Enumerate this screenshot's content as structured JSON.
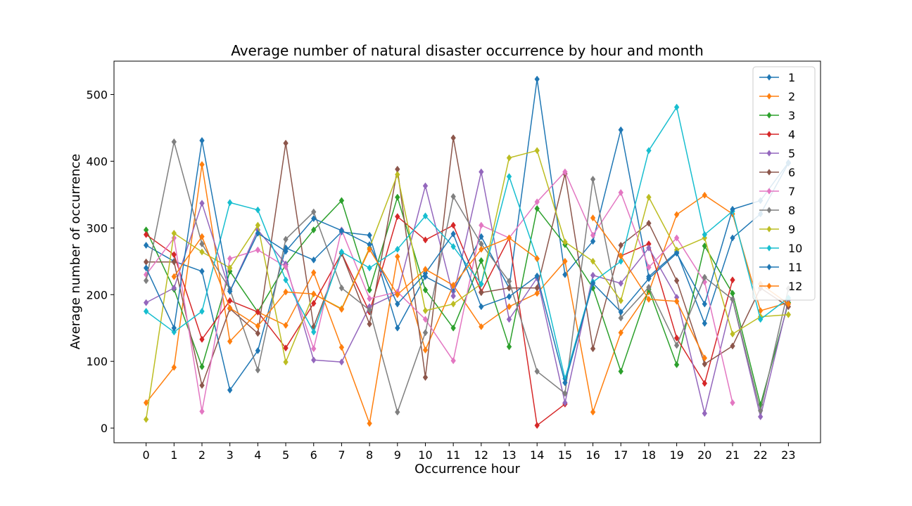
{
  "chart_data": {
    "type": "line",
    "title": "Average number of natural disaster occurrence by hour and month",
    "xlabel": "Occurrence hour",
    "ylabel": "Average number of occurrence",
    "x": [
      0,
      1,
      2,
      3,
      4,
      5,
      6,
      7,
      8,
      9,
      10,
      11,
      12,
      13,
      14,
      15,
      16,
      17,
      18,
      19,
      20,
      21,
      22,
      23
    ],
    "xlim": [
      -1.15,
      24.15
    ],
    "ylim": [
      -22,
      550
    ],
    "yticks": [
      0,
      100,
      200,
      300,
      400,
      500
    ],
    "grid": false,
    "legend": "top-right",
    "marker": "diamond",
    "series": [
      {
        "name": "1",
        "color": "#1f77b4",
        "values": [
          274,
          250,
          235,
          57,
          116,
          270,
          252,
          294,
          289,
          150,
          227,
          205,
          287,
          210,
          523,
          230,
          280,
          447,
          227,
          264,
          157,
          285,
          321,
          397
        ]
      },
      {
        "name": "2",
        "color": "#ff7f0e",
        "values": [
          38,
          91,
          395,
          130,
          174,
          154,
          233,
          121,
          7,
          257,
          117,
          214,
          152,
          182,
          202,
          250,
          24,
          143,
          204,
          320,
          349,
          321,
          176,
          188
        ]
      },
      {
        "name": "3",
        "color": "#2ca02c",
        "values": [
          297,
          208,
          92,
          235,
          174,
          245,
          297,
          341,
          207,
          346,
          207,
          150,
          251,
          122,
          329,
          275,
          210,
          85,
          208,
          95,
          273,
          202,
          35,
          188
        ]
      },
      {
        "name": "4",
        "color": "#d62728",
        "values": [
          290,
          260,
          133,
          191,
          174,
          120,
          187,
          262,
          174,
          317,
          282,
          304,
          204,
          285,
          4,
          36,
          null,
          258,
          276,
          135,
          67,
          222,
          null,
          null
        ]
      },
      {
        "name": "5",
        "color": "#9467bd",
        "values": [
          188,
          210,
          337,
          205,
          297,
          246,
          102,
          99,
          182,
          202,
          363,
          198,
          384,
          163,
          225,
          38,
          229,
          217,
          270,
          196,
          22,
          193,
          17,
          192
        ]
      },
      {
        "name": "6",
        "color": "#8c564b",
        "values": [
          249,
          249,
          64,
          179,
          142,
          427,
          152,
          262,
          156,
          388,
          76,
          435,
          203,
          210,
          210,
          381,
          119,
          274,
          307,
          221,
          96,
          123,
          210,
          182
        ]
      },
      {
        "name": "7",
        "color": "#e377c2",
        "values": [
          230,
          285,
          25,
          254,
          267,
          242,
          119,
          297,
          194,
          204,
          163,
          101,
          304,
          285,
          339,
          384,
          289,
          353,
          241,
          285,
          219,
          38,
          null,
          null
        ]
      },
      {
        "name": "8",
        "color": "#7f7f7f",
        "values": [
          221,
          429,
          276,
          208,
          87,
          283,
          324,
          210,
          177,
          24,
          143,
          347,
          276,
          220,
          85,
          52,
          373,
          165,
          211,
          124,
          226,
          193,
          26,
          209
        ]
      },
      {
        "name": "9",
        "color": "#bcbd22",
        "values": [
          13,
          292,
          264,
          240,
          304,
          99,
          201,
          179,
          270,
          380,
          176,
          186,
          216,
          405,
          416,
          279,
          250,
          191,
          346,
          267,
          285,
          141,
          167,
          170
        ]
      },
      {
        "name": "10",
        "color": "#17becf",
        "values": [
          175,
          144,
          175,
          338,
          327,
          222,
          144,
          264,
          240,
          268,
          318,
          272,
          216,
          377,
          254,
          74,
          219,
          250,
          416,
          481,
          290,
          325,
          163,
          195
        ]
      },
      {
        "name": "11",
        "color": "#1f77b4",
        "values": [
          240,
          150,
          431,
          205,
          292,
          265,
          314,
          296,
          275,
          186,
          232,
          291,
          182,
          197,
          228,
          68,
          217,
          174,
          224,
          262,
          186,
          328,
          341,
          398
        ]
      },
      {
        "name": "12",
        "color": "#ff7f0e",
        "values": [
          null,
          227,
          287,
          180,
          153,
          204,
          201,
          178,
          268,
          200,
          238,
          214,
          268,
          285,
          254,
          null,
          315,
          258,
          193,
          190,
          105,
          null,
          216,
          186
        ]
      }
    ]
  }
}
